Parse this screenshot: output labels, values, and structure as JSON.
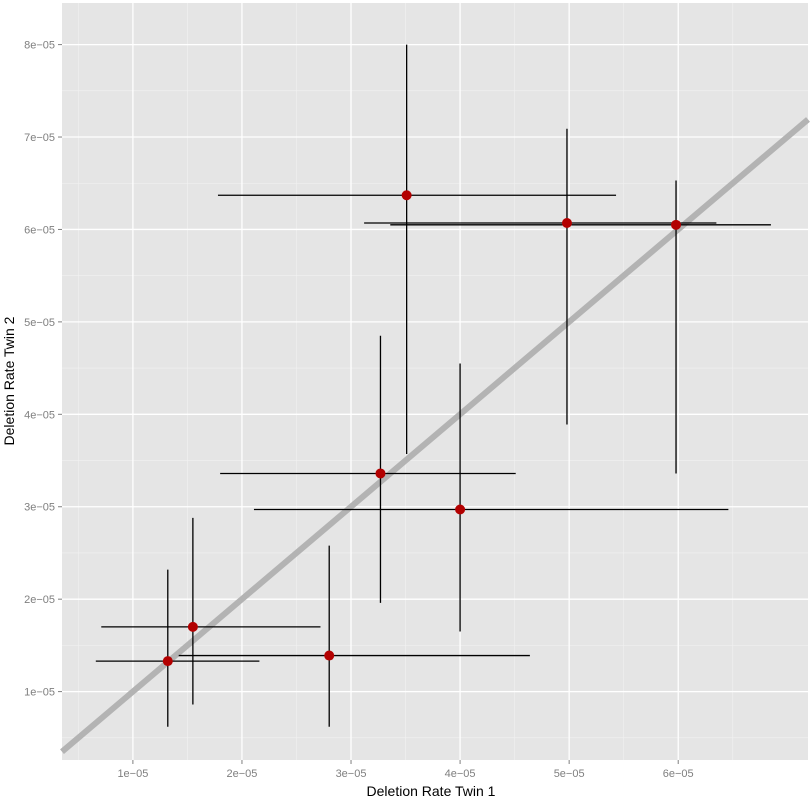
{
  "chart_data": {
    "type": "scatter",
    "title": "",
    "xlabel": "Deletion Rate Twin 1",
    "ylabel": "Deletion Rate Twin 2",
    "xlim": [
      3.5e-06,
      7.19e-05
    ],
    "ylim": [
      2.6e-06,
      8.45e-05
    ],
    "x_ticks": [
      1e-05,
      2e-05,
      3e-05,
      4e-05,
      5e-05,
      6e-05
    ],
    "x_tick_labels": [
      "1e−05",
      "2e−05",
      "3e−05",
      "4e−05",
      "5e−05",
      "6e−05"
    ],
    "y_ticks": [
      1e-05,
      2e-05,
      3e-05,
      4e-05,
      5e-05,
      6e-05,
      7e-05,
      8e-05
    ],
    "y_tick_labels": [
      "1e−05",
      "2e−05",
      "3e−05",
      "4e−05",
      "5e−05",
      "6e−05",
      "7e−05",
      "8e−05"
    ],
    "grid": true,
    "reference_line": {
      "slope": 1,
      "intercept": 0,
      "color": "#b3b3b3"
    },
    "point_color": "#b30000",
    "points": [
      {
        "x": 1.32e-05,
        "y": 1.33e-05,
        "x_lo": 6.6e-06,
        "x_hi": 2.16e-05,
        "y_lo": 6.2e-06,
        "y_hi": 2.32e-05
      },
      {
        "x": 1.55e-05,
        "y": 1.7e-05,
        "x_lo": 7.1e-06,
        "x_hi": 2.72e-05,
        "y_lo": 8.6e-06,
        "y_hi": 2.88e-05
      },
      {
        "x": 2.8e-05,
        "y": 1.39e-05,
        "x_lo": 1.42e-05,
        "x_hi": 4.64e-05,
        "y_lo": 6.2e-06,
        "y_hi": 2.58e-05
      },
      {
        "x": 3.27e-05,
        "y": 3.36e-05,
        "x_lo": 1.8e-05,
        "x_hi": 4.51e-05,
        "y_lo": 1.96e-05,
        "y_hi": 4.85e-05
      },
      {
        "x": 4e-05,
        "y": 2.97e-05,
        "x_lo": 2.11e-05,
        "x_hi": 6.46e-05,
        "y_lo": 1.65e-05,
        "y_hi": 4.55e-05
      },
      {
        "x": 3.51e-05,
        "y": 6.37e-05,
        "x_lo": 1.78e-05,
        "x_hi": 5.43e-05,
        "y_lo": 3.57e-05,
        "y_hi": 8e-05
      },
      {
        "x": 4.98e-05,
        "y": 6.07e-05,
        "x_lo": 3.12e-05,
        "x_hi": 6.35e-05,
        "y_lo": 3.89e-05,
        "y_hi": 7.09e-05
      },
      {
        "x": 5.98e-05,
        "y": 6.05e-05,
        "x_lo": 3.36e-05,
        "x_hi": 6.85e-05,
        "y_lo": 3.36e-05,
        "y_hi": 6.53e-05
      }
    ]
  }
}
